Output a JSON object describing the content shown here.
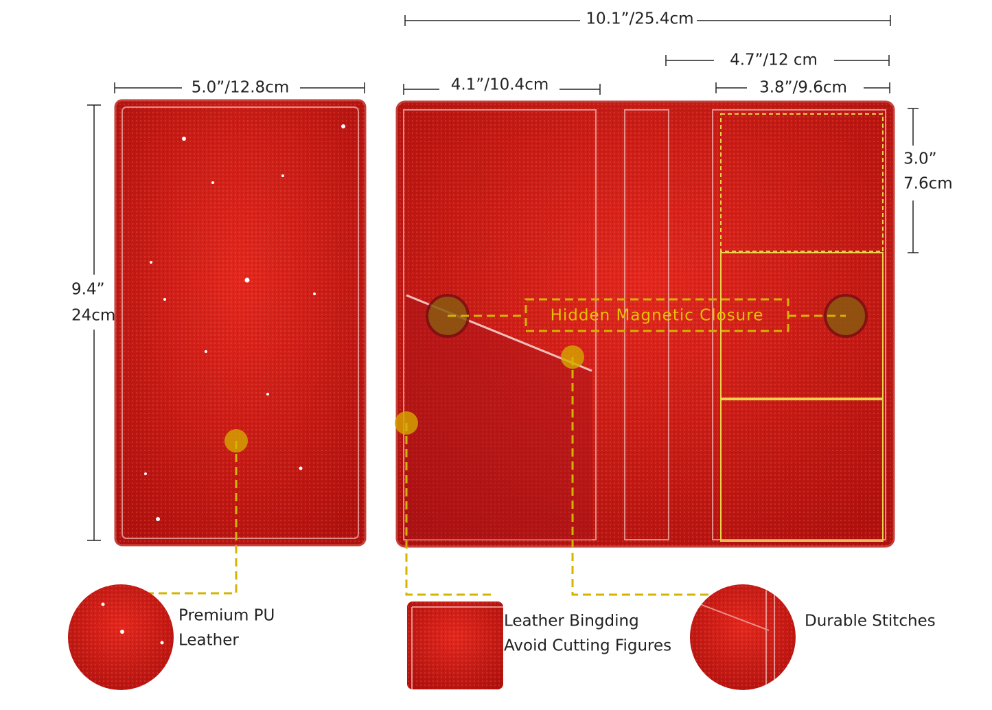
{
  "dimensions": {
    "total_width": "10.1”/25.4cm",
    "right_panel_width": "4.7”/12 cm",
    "cover_width": "5.0”/12.8cm",
    "left_panel_width": "4.1”/10.4cm",
    "card_slot_width": "3.8”/9.6cm",
    "card_slot_height": [
      "3.0”",
      "7.6cm"
    ],
    "cover_height": [
      "9.4”",
      "24cm"
    ]
  },
  "callouts": {
    "closure": "Hidden Magnetic Closure",
    "material": [
      "Premium PU",
      "Leather"
    ],
    "binding": [
      "Leather Bingding",
      "Avoid Cutting Figures"
    ],
    "stitches": "Durable Stitches"
  }
}
